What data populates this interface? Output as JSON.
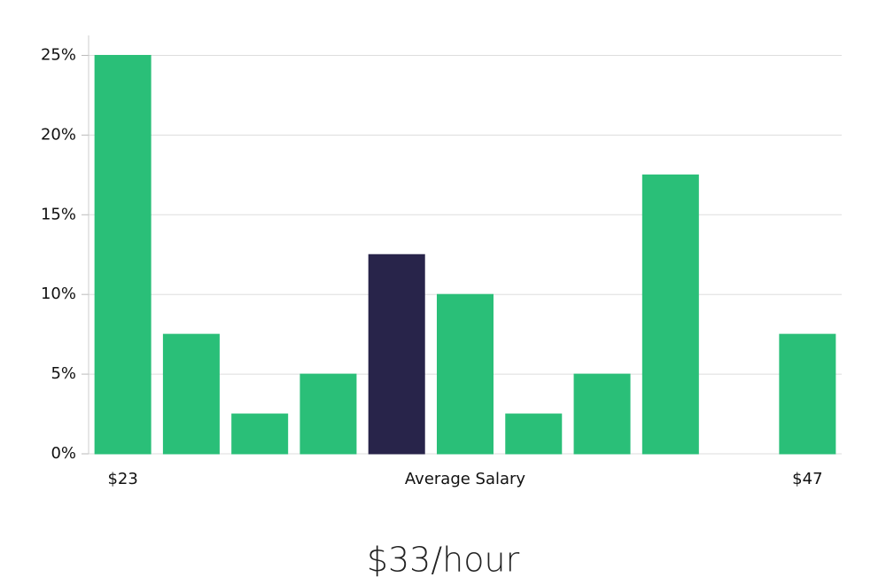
{
  "chart_data": {
    "type": "bar",
    "annotation": "$33/hour",
    "categories": [
      "$23",
      null,
      null,
      null,
      null,
      "Average Salary",
      null,
      null,
      null,
      null,
      "$47"
    ],
    "values": [
      25,
      7.5,
      2.5,
      5,
      12.5,
      10,
      2.5,
      5,
      17.5,
      0,
      7.5
    ],
    "colors": [
      "#2abf78",
      "#2abf78",
      "#2abf78",
      "#2abf78",
      "#28244a",
      "#2abf78",
      "#2abf78",
      "#2abf78",
      "#2abf78",
      "#2abf78",
      "#2abf78"
    ],
    "ylim": [
      0,
      26.25
    ],
    "yticks": [
      {
        "value": 0,
        "label": "0%"
      },
      {
        "value": 5,
        "label": "5%"
      },
      {
        "value": 10,
        "label": "10%"
      },
      {
        "value": 15,
        "label": "15%"
      },
      {
        "value": 20,
        "label": "20%"
      },
      {
        "value": 25,
        "label": "25%"
      }
    ],
    "grid": true
  }
}
